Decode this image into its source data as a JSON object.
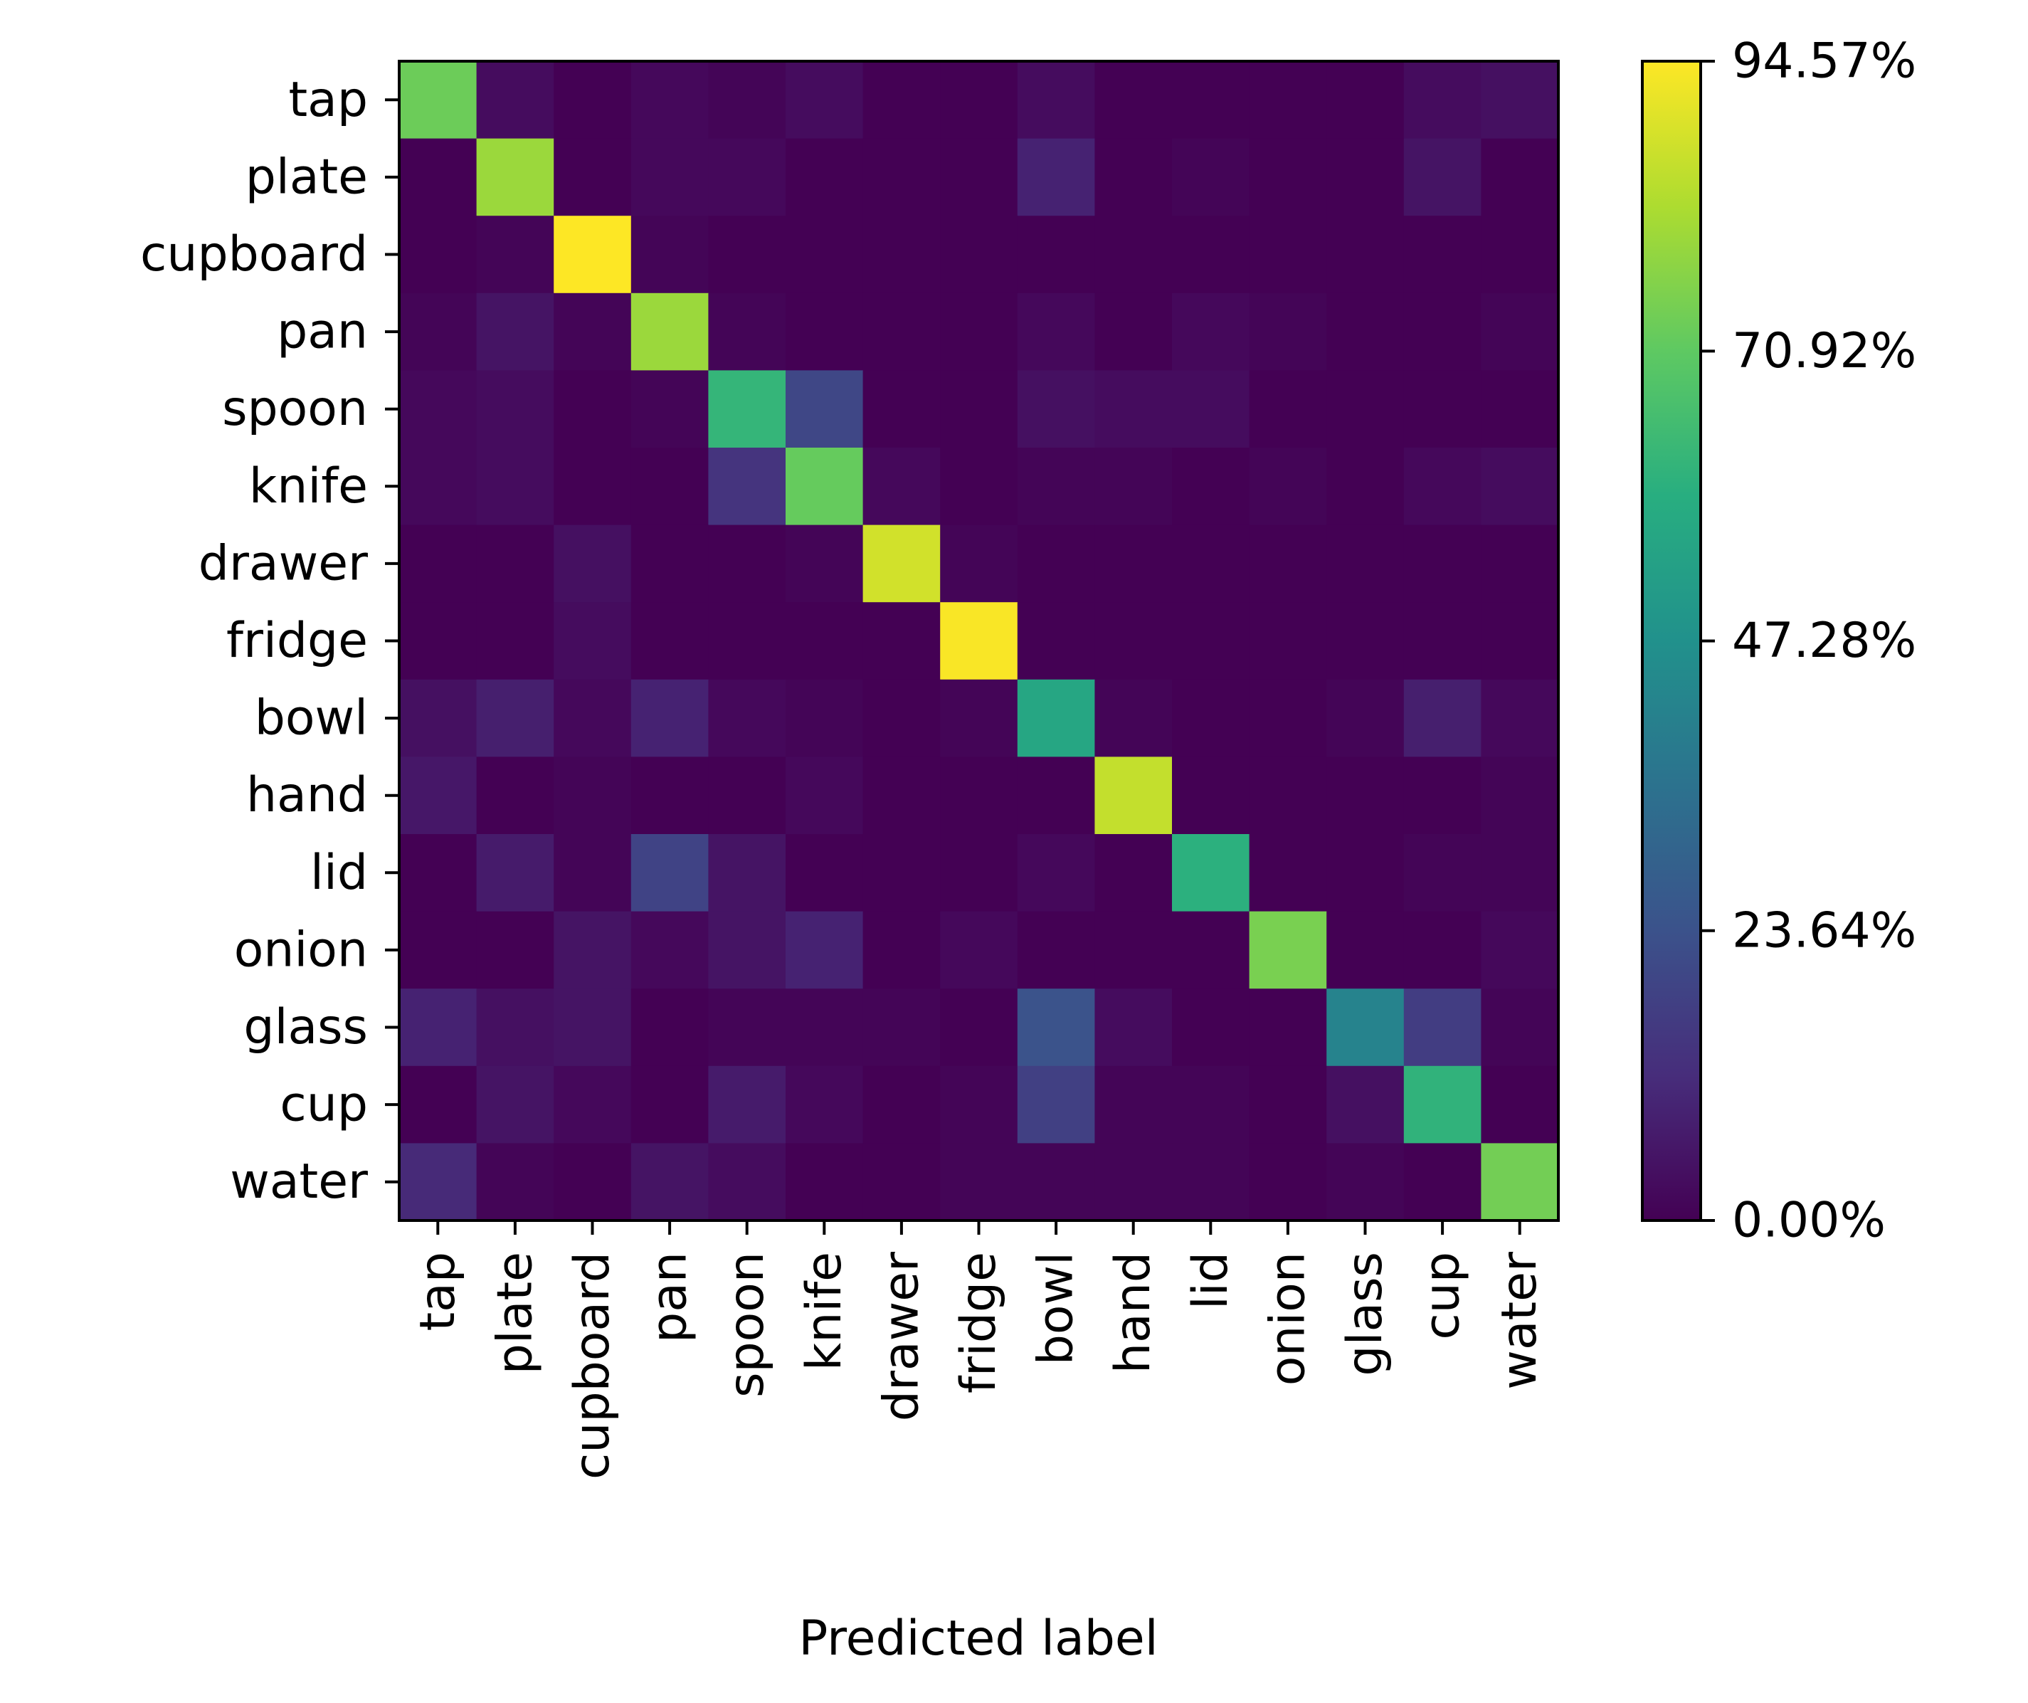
{
  "chart_data": {
    "type": "heatmap",
    "title": "",
    "xlabel": "Predicted label",
    "ylabel": "",
    "x_categories": [
      "tap",
      "plate",
      "cupboard",
      "pan",
      "spoon",
      "knife",
      "drawer",
      "fridge",
      "bowl",
      "hand",
      "lid",
      "onion",
      "glass",
      "cup",
      "water"
    ],
    "y_categories": [
      "tap",
      "plate",
      "cupboard",
      "pan",
      "spoon",
      "knife",
      "drawer",
      "fridge",
      "bowl",
      "hand",
      "lid",
      "onion",
      "glass",
      "cup",
      "water"
    ],
    "value_unit": "%",
    "value_range": [
      0,
      94.57
    ],
    "colormap": "viridis",
    "colorbar": {
      "ticks": [
        0.0,
        23.64,
        47.28,
        70.92,
        94.57
      ],
      "tick_labels": [
        "0.00%",
        "23.64%",
        "47.28%",
        "70.92%",
        "94.57%"
      ]
    },
    "values": [
      [
        73,
        3,
        0,
        2,
        1,
        3,
        0,
        0,
        3,
        0,
        0,
        0,
        0,
        3,
        4
      ],
      [
        0,
        80,
        0,
        2,
        2,
        0,
        0,
        0,
        9,
        0,
        1,
        0,
        0,
        5,
        0
      ],
      [
        0,
        1,
        94.57,
        1,
        0,
        0,
        0,
        0,
        0,
        0,
        0,
        0,
        0,
        0,
        0
      ],
      [
        1,
        5,
        1,
        80,
        1,
        0,
        0,
        0,
        2,
        0,
        2,
        1,
        0,
        0,
        1
      ],
      [
        2,
        3,
        0,
        1,
        62,
        20,
        0,
        0,
        4,
        3,
        3,
        0,
        0,
        0,
        0
      ],
      [
        2,
        3,
        0,
        0,
        14,
        72,
        2,
        0,
        1,
        1,
        0,
        1,
        0,
        2,
        3
      ],
      [
        0,
        0,
        4,
        0,
        0,
        1,
        88,
        1,
        0,
        0,
        0,
        0,
        0,
        0,
        0
      ],
      [
        0,
        0,
        3,
        0,
        0,
        0,
        0,
        94,
        0,
        0,
        0,
        0,
        0,
        0,
        0
      ],
      [
        4,
        8,
        2,
        9,
        2,
        1,
        0,
        1,
        56,
        1,
        0,
        0,
        1,
        8,
        2
      ],
      [
        6,
        0,
        1,
        0,
        0,
        2,
        0,
        0,
        0,
        86,
        0,
        0,
        0,
        0,
        1
      ],
      [
        0,
        7,
        1,
        19,
        5,
        0,
        0,
        0,
        2,
        0,
        60,
        0,
        0,
        1,
        1
      ],
      [
        0,
        0,
        5,
        2,
        5,
        9,
        0,
        2,
        0,
        0,
        0,
        75,
        0,
        0,
        2
      ],
      [
        9,
        4,
        5,
        0,
        1,
        1,
        1,
        0,
        24,
        3,
        0,
        0,
        42,
        17,
        1
      ],
      [
        0,
        5,
        2,
        0,
        7,
        2,
        0,
        1,
        18,
        1,
        1,
        0,
        4,
        61,
        0
      ],
      [
        11,
        1,
        0,
        5,
        3,
        0,
        0,
        1,
        1,
        1,
        1,
        0,
        1,
        0,
        74
      ]
    ]
  }
}
